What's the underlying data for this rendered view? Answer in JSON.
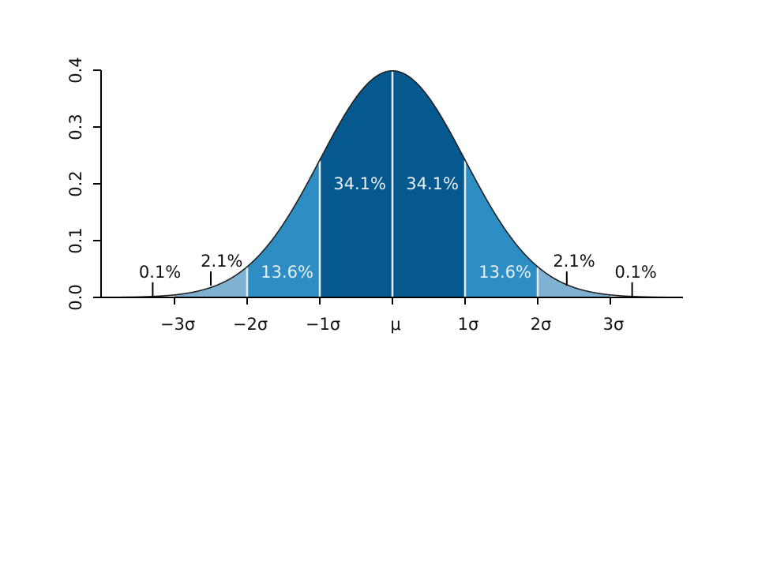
{
  "chart_data": {
    "type": "area",
    "title": "",
    "xlabel": "",
    "ylabel": "",
    "xlim": [
      -4,
      4
    ],
    "ylim": [
      0,
      0.4
    ],
    "y_ticks": [
      0.0,
      0.1,
      0.2,
      0.3,
      0.4
    ],
    "y_tick_labels": [
      "0.0",
      "0.1",
      "0.2",
      "0.3",
      "0.4"
    ],
    "x_ticks": [
      -3,
      -2,
      -1,
      0,
      1,
      2,
      3
    ],
    "x_tick_labels": [
      "−3σ",
      "−2σ",
      "−1σ",
      "μ",
      "1σ",
      "2σ",
      "3σ"
    ],
    "curve": "standard normal density",
    "regions": [
      {
        "from": -4,
        "to": -3,
        "color": "#ffffff"
      },
      {
        "from": -3,
        "to": -2,
        "color": "#7fb1d3"
      },
      {
        "from": -2,
        "to": -1,
        "color": "#2e8ec4"
      },
      {
        "from": -1,
        "to": 0,
        "color": "#06598e"
      },
      {
        "from": 0,
        "to": 1,
        "color": "#06598e"
      },
      {
        "from": 1,
        "to": 2,
        "color": "#2e8ec4"
      },
      {
        "from": 2,
        "to": 3,
        "color": "#7fb1d3"
      },
      {
        "from": 3,
        "to": 4,
        "color": "#ffffff"
      }
    ],
    "dividers": [
      -2,
      -1,
      0,
      1,
      2
    ],
    "annotations": [
      {
        "text": "34.1%",
        "x": -0.45,
        "y": 0.19,
        "color": "#e8f0f7",
        "pointer": null
      },
      {
        "text": "34.1%",
        "x": 0.55,
        "y": 0.19,
        "color": "#e8f0f7",
        "pointer": null
      },
      {
        "text": "13.6%",
        "x": -1.45,
        "y": 0.035,
        "color": "#e8f0f7",
        "pointer": null
      },
      {
        "text": "13.6%",
        "x": 1.55,
        "y": 0.035,
        "color": "#e8f0f7",
        "pointer": null
      },
      {
        "text": "2.1%",
        "x": -2.35,
        "y": 0.054,
        "color": "#111111",
        "pointer": -2.5
      },
      {
        "text": "2.1%",
        "x": 2.5,
        "y": 0.054,
        "color": "#111111",
        "pointer": 2.4
      },
      {
        "text": "0.1%",
        "x": -3.2,
        "y": 0.035,
        "color": "#111111",
        "pointer": -3.3
      },
      {
        "text": "0.1%",
        "x": 3.35,
        "y": 0.035,
        "color": "#111111",
        "pointer": 3.3
      }
    ]
  }
}
